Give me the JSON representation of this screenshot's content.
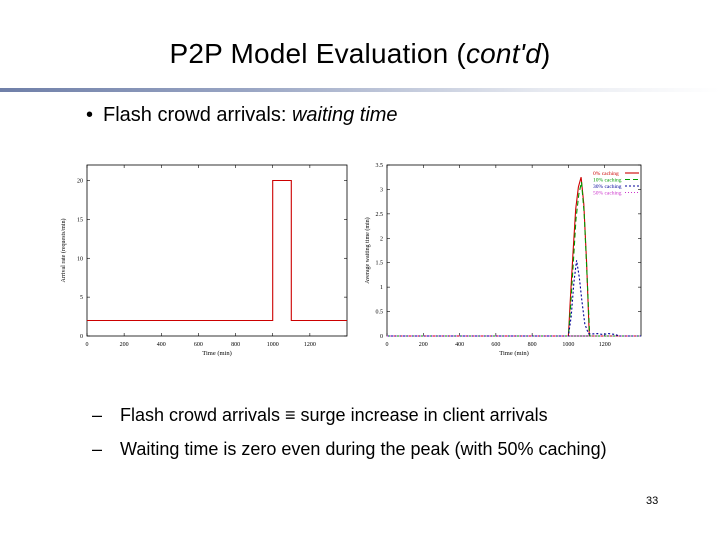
{
  "slide": {
    "title_main": "P2P Model Evaluation (",
    "title_italic": "cont'd",
    "title_end": ")",
    "bullet_dot": "•",
    "bullet_text": "Flash crowd arrivals: ",
    "bullet_italic": "waiting time",
    "sub1_dash": "–",
    "sub1_text": "Flash crowd arrivals ≡ surge increase in client arrivals",
    "sub2_dash": "–",
    "sub2_text": "Waiting time is zero even during the peak (with 50% caching)",
    "page_number": "33"
  },
  "chart_data": [
    {
      "type": "line",
      "xlabel": "Time (min)",
      "ylabel": "Arrival rate (requests/min)",
      "xlim": [
        0,
        1400
      ],
      "ylim": [
        0,
        22
      ],
      "xticks": [
        0,
        200,
        400,
        600,
        800,
        1000,
        1200
      ],
      "yticks": [
        0,
        5,
        10,
        15,
        20
      ],
      "ytick_labels": [
        "0",
        "5",
        "10",
        "15",
        "20"
      ],
      "series": [
        {
          "color": "#cc0000",
          "x": [
            0,
            1000,
            1000,
            1100,
            1100,
            1400
          ],
          "y": [
            2,
            2,
            20,
            20,
            2,
            2
          ]
        }
      ]
    },
    {
      "type": "line",
      "xlabel": "Time (min)",
      "ylabel": "Average waiting time (min)",
      "xlim": [
        0,
        1400
      ],
      "ylim": [
        0,
        3.5
      ],
      "xticks": [
        0,
        200,
        400,
        600,
        800,
        1000,
        1200
      ],
      "yticks": [
        0,
        0.5,
        1,
        1.5,
        2,
        2.5,
        3,
        3.5
      ],
      "ytick_labels": [
        "0",
        "0.5",
        "1",
        "1.5",
        "2",
        "2.5",
        "3",
        "3.5"
      ],
      "legend_position": "top-right",
      "series": [
        {
          "name": "0% caching",
          "color": "#cc0000",
          "dash": "none",
          "x": [
            0,
            1000,
            1010,
            1025,
            1040,
            1055,
            1070,
            1085,
            1100,
            1115,
            1400
          ],
          "y": [
            0,
            0,
            0.7,
            1.7,
            2.6,
            3.05,
            3.25,
            2.7,
            1.5,
            0,
            0
          ]
        },
        {
          "name": "10% caching",
          "color": "#009900",
          "dash": "5,3",
          "x": [
            0,
            1000,
            1012,
            1027,
            1042,
            1057,
            1072,
            1087,
            1102,
            1117,
            1400
          ],
          "y": [
            0,
            0,
            0.6,
            1.5,
            2.4,
            2.9,
            3.15,
            2.5,
            1.3,
            0,
            0
          ]
        },
        {
          "name": "30% caching",
          "color": "#000099",
          "dash": "2,2",
          "x": [
            0,
            1000,
            1015,
            1030,
            1045,
            1060,
            1075,
            1090,
            1110,
            1130,
            1160,
            1190,
            1220,
            1260,
            1280,
            1400
          ],
          "y": [
            0,
            0,
            0.4,
            1.1,
            1.55,
            1.2,
            0.7,
            0.25,
            0.05,
            0.04,
            0.05,
            0.03,
            0.05,
            0.03,
            0,
            0
          ]
        },
        {
          "name": "50% caching",
          "color": "#cc33cc",
          "dash": "1,2",
          "x": [
            0,
            1400
          ],
          "y": [
            0,
            0
          ]
        }
      ]
    }
  ]
}
